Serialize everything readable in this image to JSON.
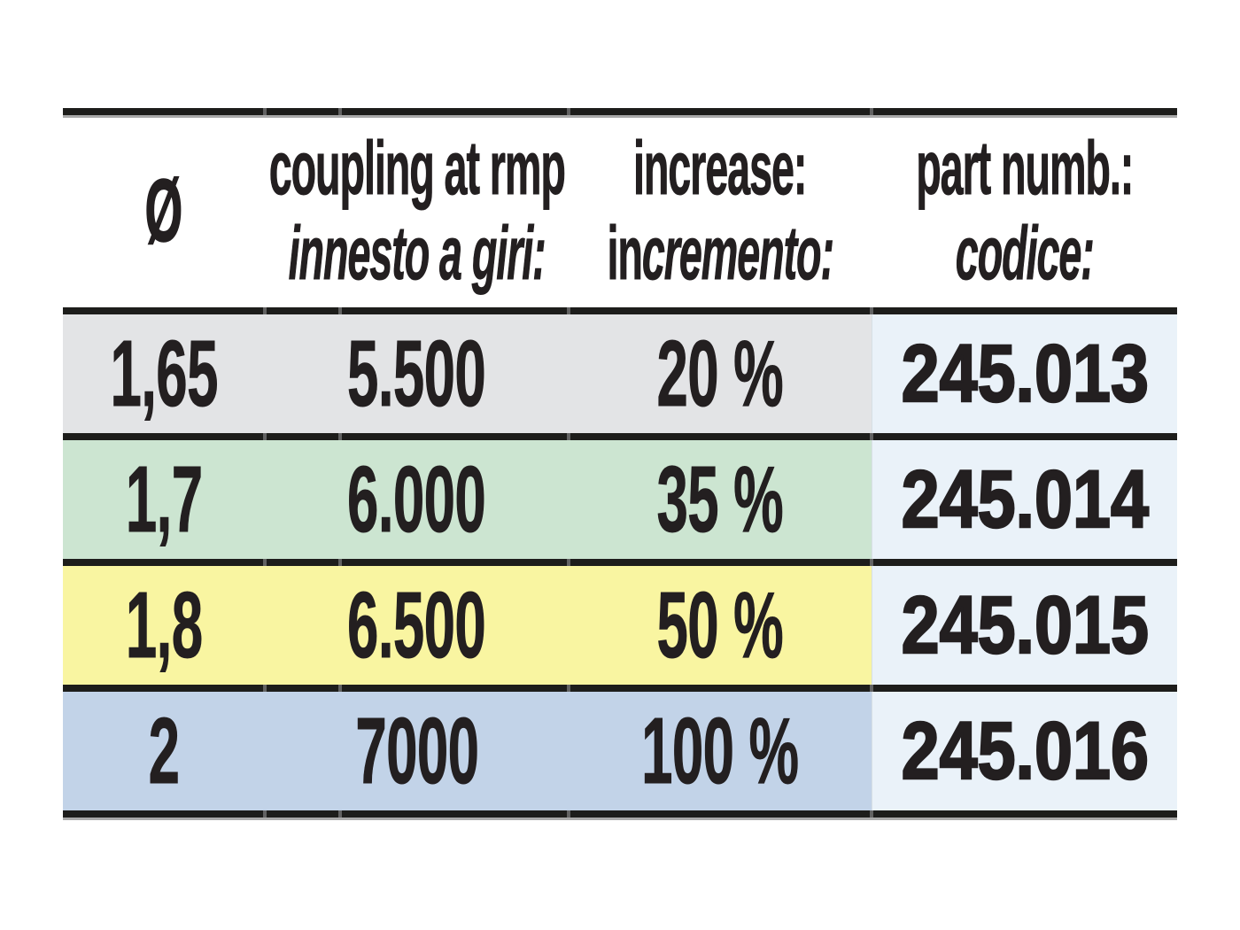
{
  "table": {
    "header": {
      "col1": {
        "symbol": "Ø"
      },
      "col2": {
        "line1": "coupling at rmp",
        "line2": "innesto a giri:"
      },
      "col3": {
        "line1": "increase:",
        "line2_upright": "in",
        "line2_italic": "cremento:"
      },
      "col4": {
        "line1": "part numb.:",
        "line2": "codice:"
      }
    },
    "rows": [
      {
        "diameter": "1,65",
        "coupling_at_rpm": "5.500",
        "increase": "20 %",
        "part_number": "245.013",
        "color": "#e3e4e6"
      },
      {
        "diameter": "1,7",
        "coupling_at_rpm": "6.000",
        "increase": "35 %",
        "part_number": "245.014",
        "color": "#cce5d1"
      },
      {
        "diameter": "1,8",
        "coupling_at_rpm": "6.500",
        "increase": "50 %",
        "part_number": "245.015",
        "color": "#f9f5a1"
      },
      {
        "diameter": "2",
        "coupling_at_rpm": "7000",
        "increase": "100 %",
        "part_number": "245.016",
        "color": "#c2d3e8"
      }
    ],
    "colors": {
      "part_number_column": "#eaf2f9",
      "rule": "#1d1d1b",
      "text": "#231f20",
      "page_background": "#ffffff"
    }
  }
}
